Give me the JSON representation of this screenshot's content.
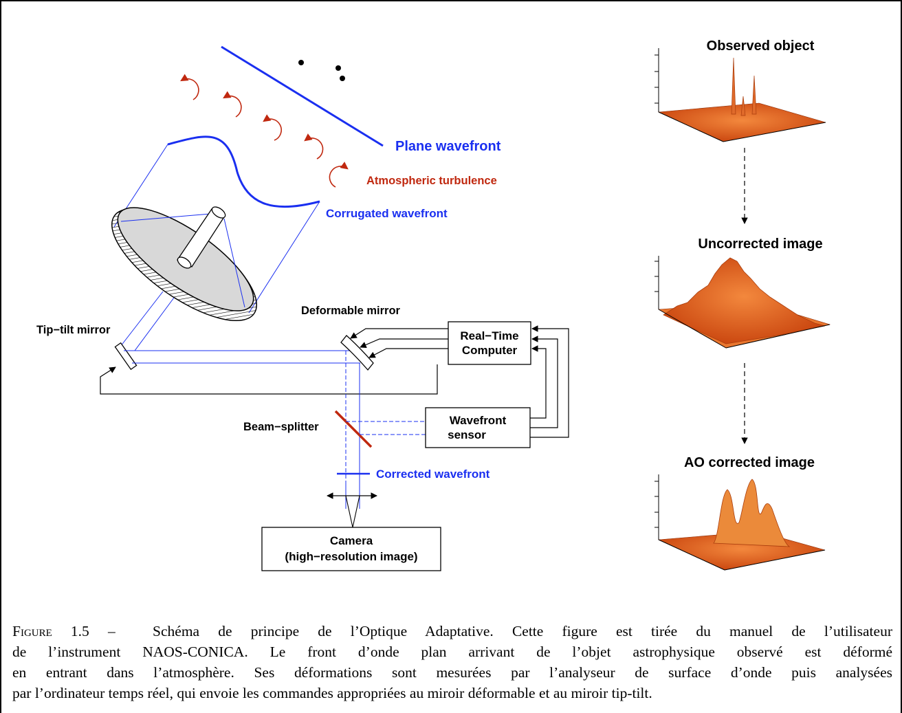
{
  "labels": {
    "plane_wavefront": "Plane wavefront",
    "atmospheric_turbulence": "Atmospheric turbulence",
    "corrugated_wavefront": "Corrugated wavefront",
    "tip_tilt_mirror": "Tip−tilt mirror",
    "deformable_mirror": "Deformable mirror",
    "rtc_line1": "Real−Time",
    "rtc_line2": "Computer",
    "beam_splitter": "Beam−splitter",
    "wfs_line1": "Wavefront",
    "wfs_line2": "sensor",
    "corrected_wavefront": "Corrected wavefront",
    "camera_line1": "Camera",
    "camera_line2": "(high−resolution image)"
  },
  "panels": {
    "observed": "Observed object",
    "uncorrected": "Uncorrected image",
    "ao_corrected": "AO corrected image"
  },
  "colors": {
    "optics_blue": "#1a2ff0",
    "turbulence_red": "#c0280f",
    "surface_orange": "#e0561a"
  },
  "caption": {
    "figure_label": "Figure 1.5 –",
    "line1": "Schéma de principe de l’Optique Adaptative. Cette figure est tirée du manuel de l’utilisateur",
    "line2": "de l’instrument NAOS-CONICA. Le front d’onde plan arrivant de l’objet astrophysique observé est déformé",
    "line3": "en entrant dans l’atmosphère. Ses déformations sont mesurées par l’analyseur de surface d’onde puis analysées",
    "line4": "par l’ordinateur temps réel, qui envoie les commandes appropriées au miroir déformable et au miroir tip-tilt."
  }
}
